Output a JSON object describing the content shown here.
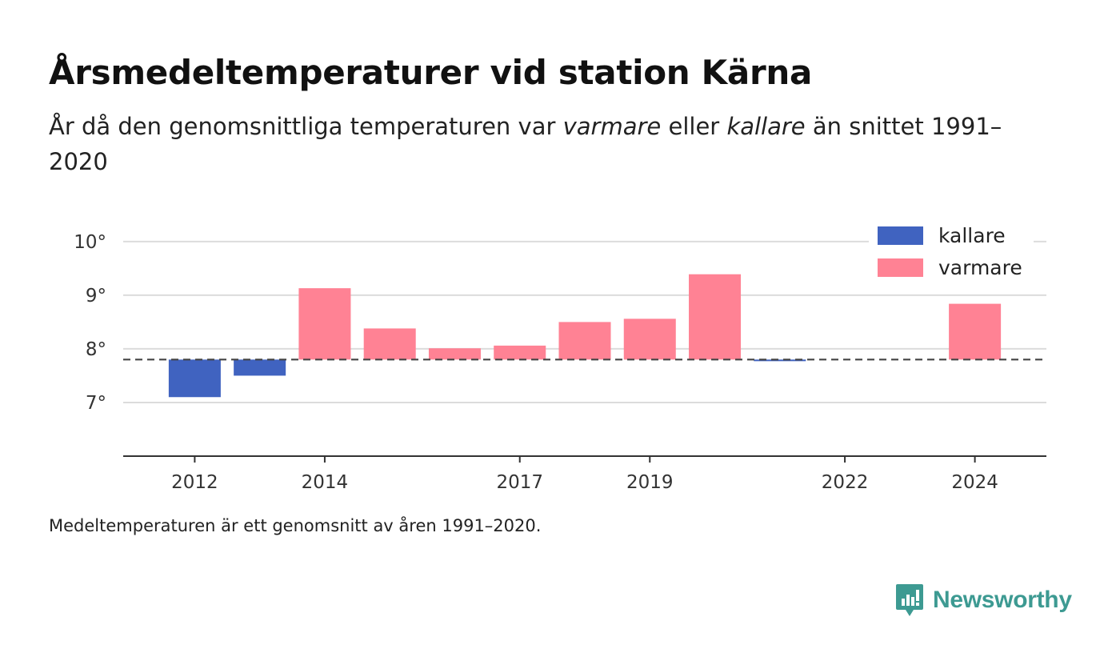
{
  "header": {
    "title": "Årsmedeltemperaturer vid station Kärna",
    "subtitle_parts": [
      "År då den genomsnittliga temperaturen var ",
      "varmare",
      " eller ",
      "kallare",
      " än snittet 1991–2020"
    ]
  },
  "footnote": "Medeltemperaturen är ett genomsnitt av åren 1991–2020.",
  "brand": {
    "name": "Newsworthy",
    "icon": "newsworthy-logo-icon",
    "color": "#3d9a92"
  },
  "chart_data": {
    "type": "bar",
    "baseline": 7.8,
    "ylim": [
      6.0,
      10.4
    ],
    "yticks": [
      7,
      8,
      9,
      10
    ],
    "ytick_labels": [
      "7°",
      "8°",
      "9°",
      "10°"
    ],
    "xlim": [
      2010.9,
      2025.1
    ],
    "xticks": [
      2012,
      2014,
      2017,
      2019,
      2022,
      2024
    ],
    "xtick_labels": [
      "2012",
      "2014",
      "2017",
      "2019",
      "2022",
      "2024"
    ],
    "grid": true,
    "legend_position": "top-right",
    "colors": {
      "kallare": "#4063c0",
      "varmare": "#ff8294"
    },
    "series": [
      {
        "name": "kallare",
        "x": [
          2012,
          2013,
          2021
        ],
        "values": [
          7.1,
          7.5,
          7.77
        ]
      },
      {
        "name": "varmare",
        "x": [
          2014,
          2015,
          2016,
          2017,
          2018,
          2019,
          2020,
          2024
        ],
        "values": [
          9.13,
          8.38,
          8.01,
          8.06,
          8.5,
          8.56,
          9.39,
          8.84
        ]
      }
    ]
  }
}
